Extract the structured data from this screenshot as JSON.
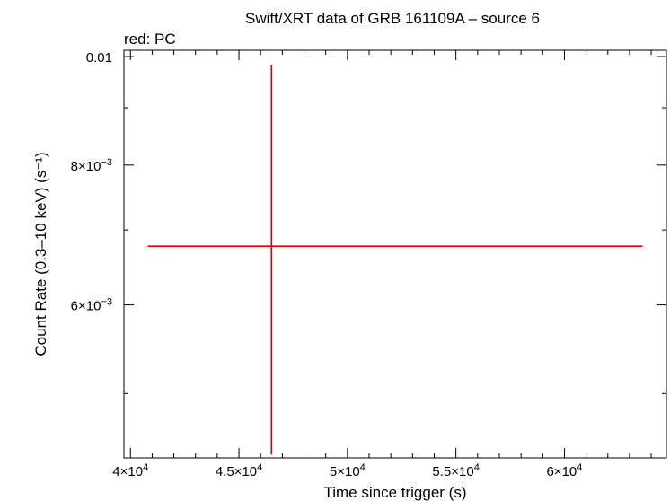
{
  "chart_data": {
    "type": "scatter",
    "title": "Swift/XRT data of GRB 161109A – source 6",
    "subtitle": "red: PC",
    "xlabel": "Time since trigger (s)",
    "ylabel": "Count Rate (0.3–10 keV) (s⁻¹)",
    "x_scale": "linear",
    "y_scale": "log",
    "xlim": [
      39700,
      64700
    ],
    "ylim": [
      0.00438,
      0.01013
    ],
    "grid": false,
    "x_ticks": [
      {
        "value": 40000,
        "mant": "4",
        "exp": "4"
      },
      {
        "value": 45000,
        "mant": "4.5",
        "exp": "4"
      },
      {
        "value": 50000,
        "mant": "5",
        "exp": "4"
      },
      {
        "value": 55000,
        "mant": "5.5",
        "exp": "4"
      },
      {
        "value": 60000,
        "mant": "6",
        "exp": "4"
      }
    ],
    "x_minor_ticks": [
      41000,
      42000,
      43000,
      44000,
      46000,
      47000,
      48000,
      49000,
      51000,
      52000,
      53000,
      54000,
      56000,
      57000,
      58000,
      59000,
      61000,
      62000,
      63000,
      64000
    ],
    "y_ticks": [
      {
        "value": 0.01,
        "label": "0.01"
      },
      {
        "value": 0.008,
        "mant": "8",
        "exp": "−3"
      },
      {
        "value": 0.006,
        "mant": "6",
        "exp": "−3"
      }
    ],
    "y_minor_ticks": [
      0.009,
      0.007,
      0.005
    ],
    "series": [
      {
        "color": "#e00000",
        "points": [
          {
            "x": 46500,
            "y": 0.00677,
            "x_err_low": 5700,
            "x_err_high": 17100,
            "y_err_low": 0.00236,
            "y_err_high": 0.00307
          }
        ]
      }
    ]
  }
}
